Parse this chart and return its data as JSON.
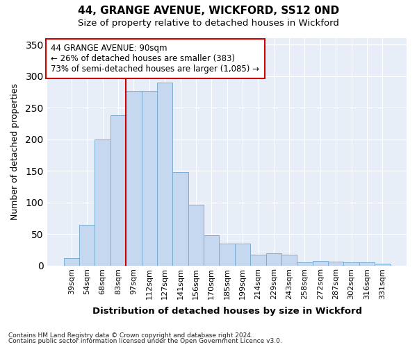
{
  "title1": "44, GRANGE AVENUE, WICKFORD, SS12 0ND",
  "title2": "Size of property relative to detached houses in Wickford",
  "xlabel": "Distribution of detached houses by size in Wickford",
  "ylabel": "Number of detached properties",
  "categories": [
    "39sqm",
    "54sqm",
    "68sqm",
    "83sqm",
    "97sqm",
    "112sqm",
    "127sqm",
    "141sqm",
    "156sqm",
    "170sqm",
    "185sqm",
    "199sqm",
    "214sqm",
    "229sqm",
    "243sqm",
    "258sqm",
    "272sqm",
    "287sqm",
    "302sqm",
    "316sqm",
    "331sqm"
  ],
  "values": [
    12,
    65,
    200,
    238,
    277,
    277,
    290,
    148,
    97,
    48,
    35,
    35,
    18,
    20,
    18,
    5,
    8,
    7,
    5,
    5,
    3
  ],
  "bar_color": "#c5d8f0",
  "bar_edge_color": "#7aadd4",
  "vline_color": "#cc0000",
  "vline_x": 3.5,
  "annotation_text_line1": "44 GRANGE AVENUE: 90sqm",
  "annotation_text_line2": "← 26% of detached houses are smaller (383)",
  "annotation_text_line3": "73% of semi-detached houses are larger (1,085) →",
  "annotation_box_color": "#ffffff",
  "annotation_border_color": "#cc0000",
  "plot_bg_color": "#e8eef8",
  "fig_bg_color": "#ffffff",
  "grid_color": "#ffffff",
  "ylim": [
    0,
    360
  ],
  "yticks": [
    0,
    50,
    100,
    150,
    200,
    250,
    300,
    350
  ],
  "footnote1": "Contains HM Land Registry data © Crown copyright and database right 2024.",
  "footnote2": "Contains public sector information licensed under the Open Government Licence v3.0."
}
